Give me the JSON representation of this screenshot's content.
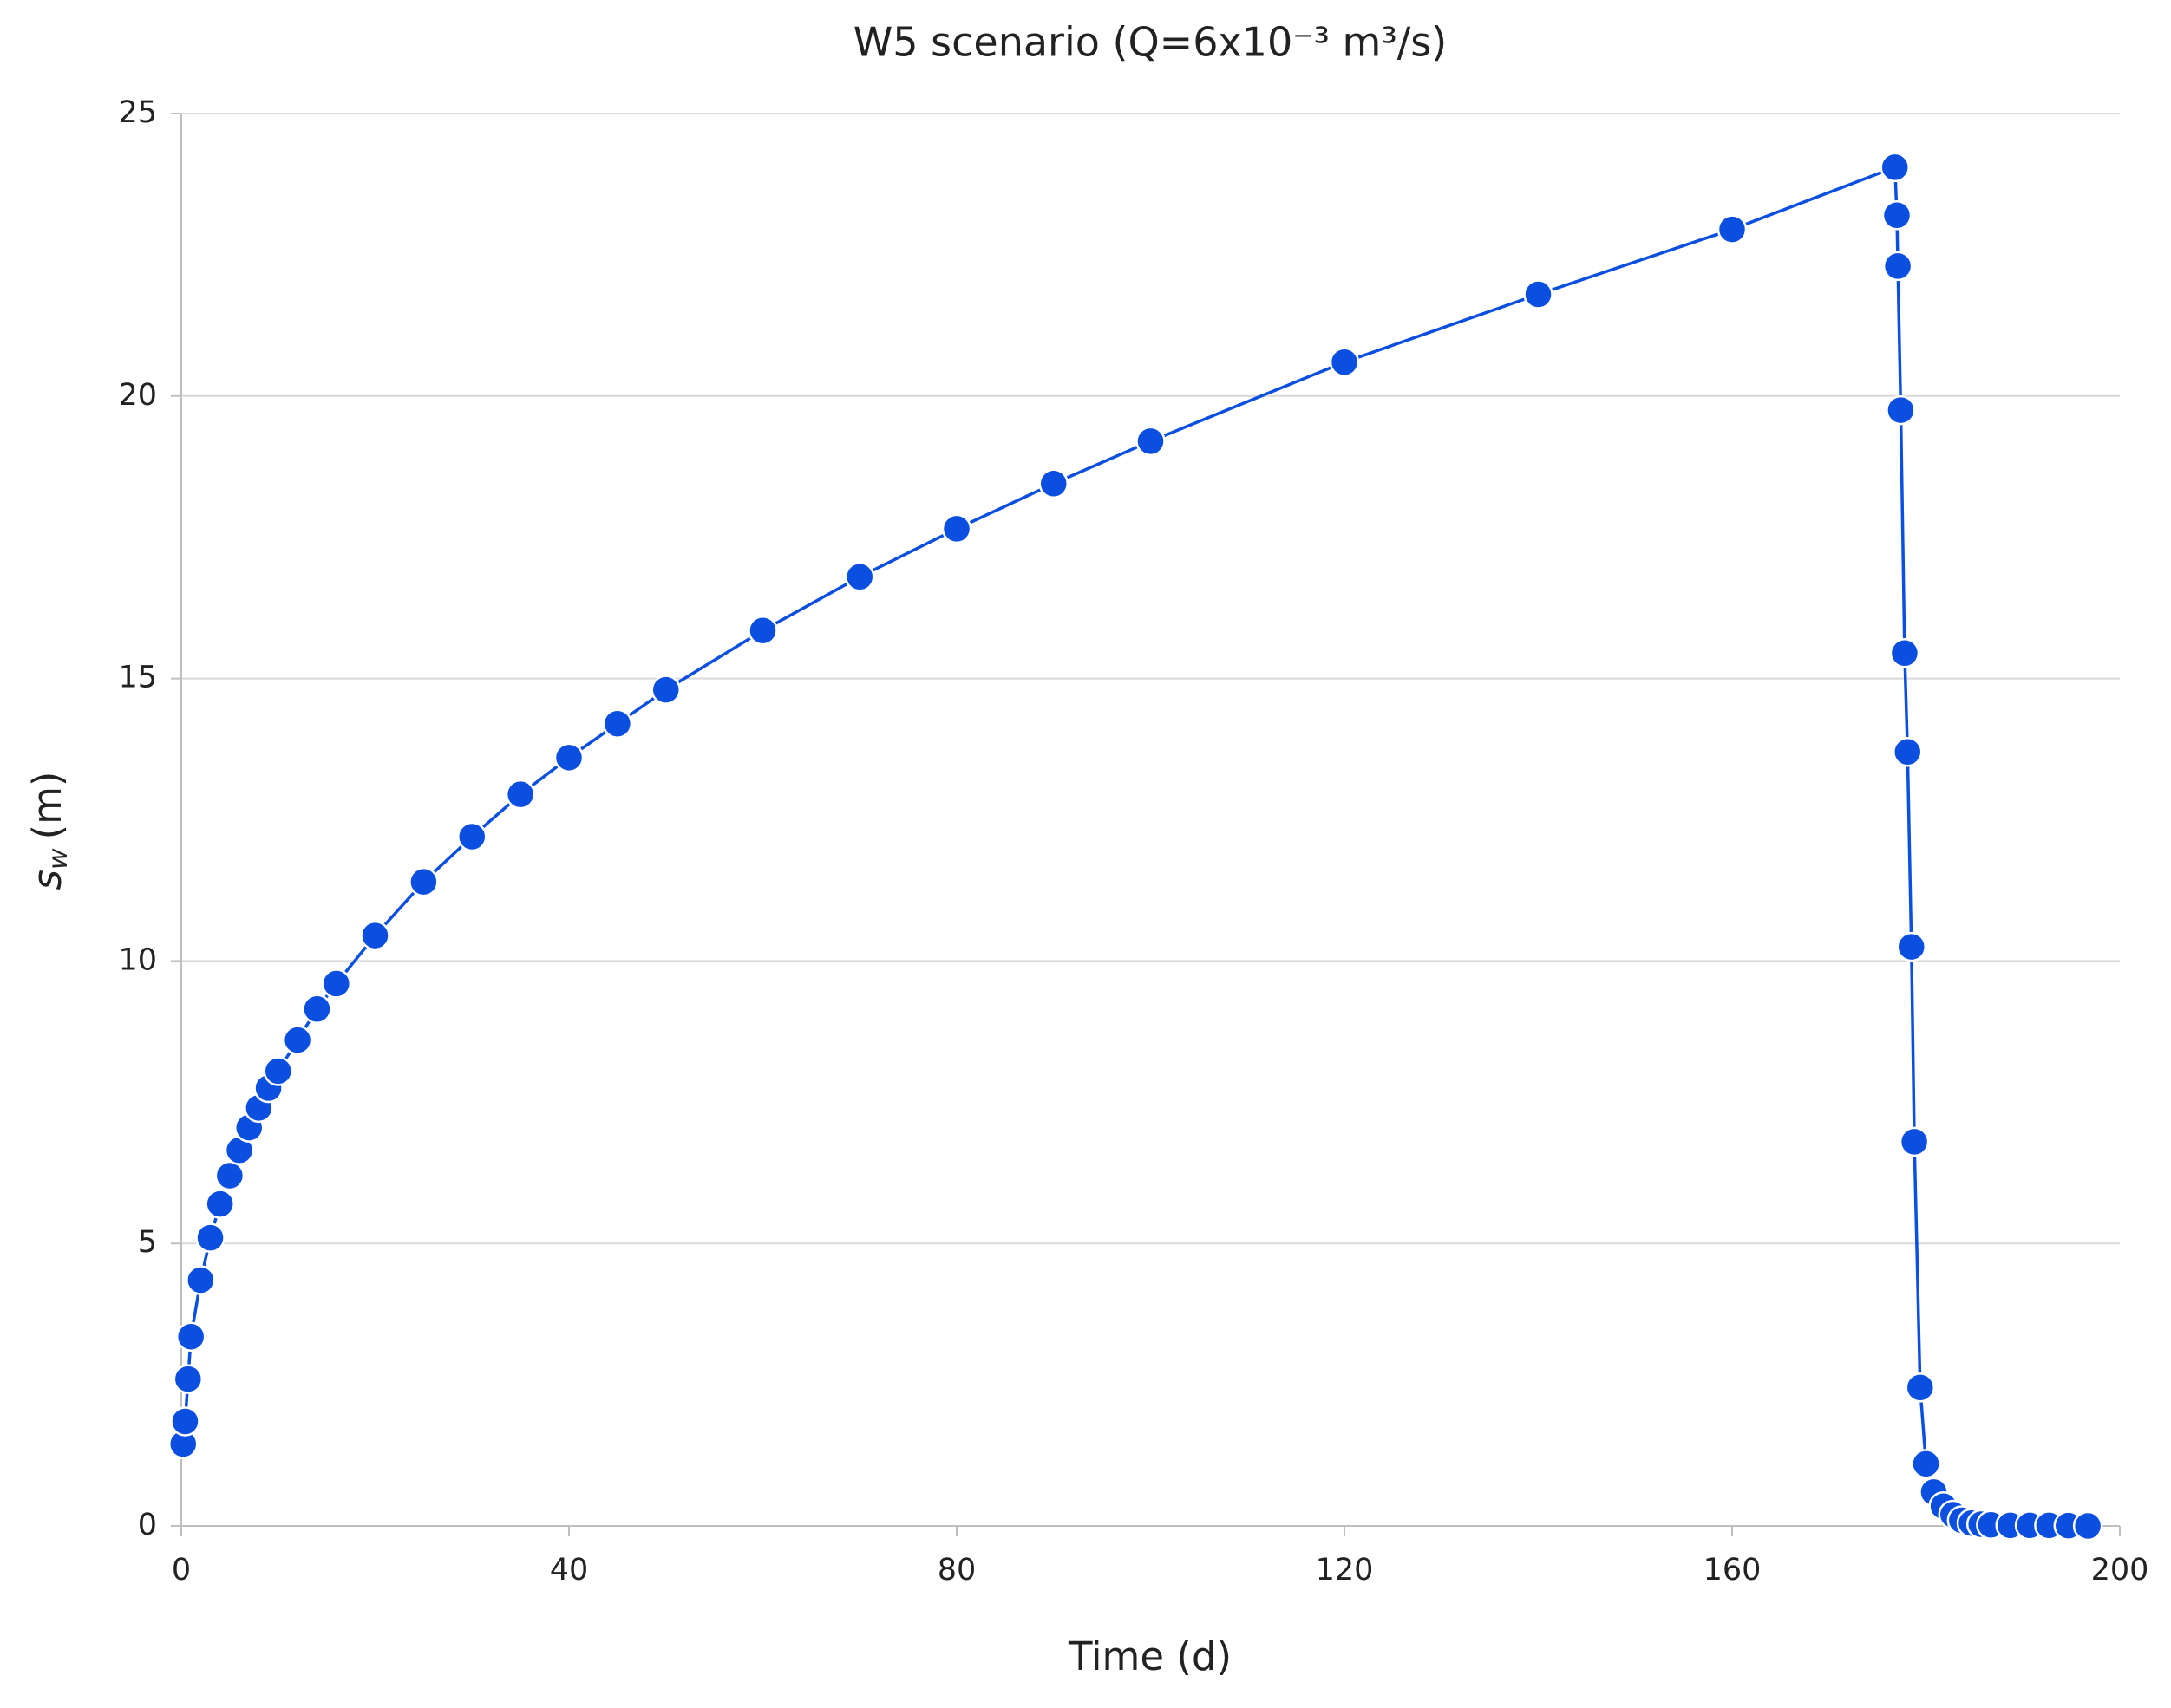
{
  "chart_data": {
    "type": "line",
    "title": "W5 scenario (Q=6x10⁻³ m³/s)",
    "xlabel": "Time (d)",
    "ylabel": {
      "symbol": "s",
      "subscript": "w",
      "unit": "(m)"
    },
    "xlim": [
      0,
      200
    ],
    "xticks": [
      0,
      40,
      80,
      120,
      160,
      200
    ],
    "ylim": [
      0,
      25
    ],
    "yticks": [
      0,
      5,
      10,
      15,
      20,
      25
    ],
    "grid": true,
    "series": [
      {
        "color": "#0a4fe0",
        "x": [
          0.2,
          0.4,
          0.7,
          1,
          2,
          3,
          4,
          5,
          6,
          7,
          8,
          9,
          10,
          12,
          14,
          16,
          20,
          25,
          30,
          35,
          40,
          45,
          50,
          60,
          70,
          80,
          90,
          100,
          120,
          140,
          160,
          176.8,
          177,
          177.1,
          177.4,
          177.8,
          178.1,
          178.5,
          178.8,
          179.4,
          180,
          180.8,
          181.8,
          182.8,
          183.7,
          184.7,
          185.7,
          186.7,
          188.7,
          190.7,
          192.7,
          194.7,
          196.7
        ],
        "values": [
          1.45,
          1.85,
          2.6,
          3.35,
          4.35,
          5.1,
          5.7,
          6.2,
          6.65,
          7.05,
          7.4,
          7.75,
          8.05,
          8.6,
          9.15,
          9.6,
          10.45,
          11.4,
          12.2,
          12.95,
          13.6,
          14.2,
          14.8,
          15.85,
          16.8,
          17.65,
          18.45,
          19.2,
          20.6,
          21.8,
          22.95,
          24.05,
          23.2,
          22.3,
          19.75,
          15.45,
          13.7,
          10.25,
          6.8,
          2.45,
          1.1,
          0.6,
          0.35,
          0.2,
          0.1,
          0.05,
          0.03,
          0.02,
          0.01,
          0.01,
          0.01,
          0.005,
          0
        ]
      }
    ]
  }
}
